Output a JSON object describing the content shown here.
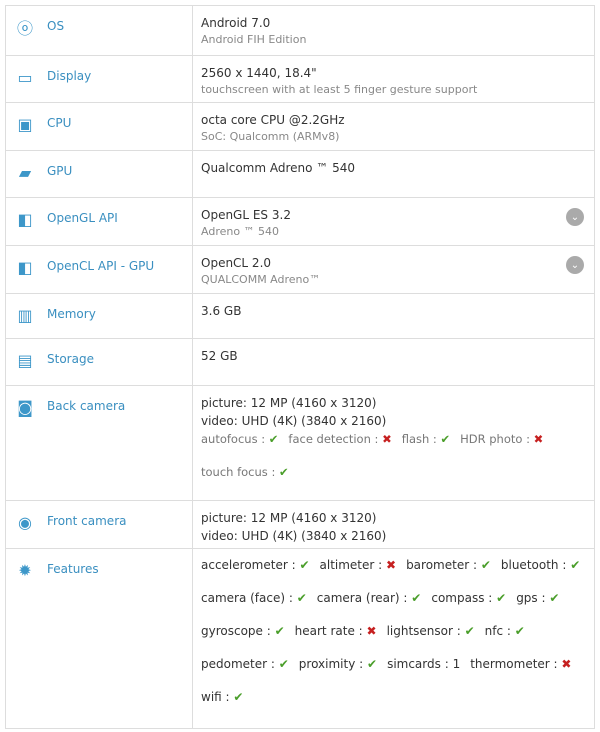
{
  "rows": [
    {
      "label": "OS",
      "icon": "os-icon",
      "main": "Android 7.0",
      "sub": "Android FIH Edition",
      "h": 50
    },
    {
      "label": "Display",
      "icon": "monitor-icon",
      "main": "2560 x 1440, 18.4\"",
      "sub": "touchscreen with at least 5 finger gesture support",
      "h": 47
    },
    {
      "label": "CPU",
      "icon": "cpu-icon",
      "main": "octa core CPU @2.2GHz",
      "sub": "SoC: Qualcomm (ARMv8)",
      "h": 48
    },
    {
      "label": "GPU",
      "icon": "gpu-icon",
      "main": "Qualcomm Adreno ™ 540",
      "h": 47
    },
    {
      "label": "OpenGL API",
      "icon": "opengl-icon",
      "main": "OpenGL ES 3.2",
      "sub": "Adreno ™ 540",
      "expand": true,
      "h": 48
    },
    {
      "label": "OpenCL API - GPU",
      "icon": "opencl-icon",
      "main": "OpenCL 2.0",
      "sub": "QUALCOMM Adreno™",
      "expand": true,
      "h": 48
    },
    {
      "label": "Memory",
      "icon": "memory-icon",
      "main": "3.6 GB",
      "h": 45
    },
    {
      "label": "Storage",
      "icon": "storage-icon",
      "main": "52 GB",
      "h": 47
    },
    {
      "label": "Back camera",
      "icon": "camera-icon",
      "lines": [
        "picture: 12 MP (4160 x 3120)",
        "video: UHD (4K) (3840 x 2160)"
      ],
      "camfeatures": [
        {
          "name": "autofocus",
          "ok": true
        },
        {
          "name": "face detection",
          "ok": false
        },
        {
          "name": "flash",
          "ok": true
        },
        {
          "name": "HDR photo",
          "ok": false
        },
        {
          "name": "touch focus",
          "ok": true
        }
      ],
      "h": 115
    },
    {
      "label": "Front camera",
      "icon": "front-camera-icon",
      "lines": [
        "picture: 12 MP (4160 x 3120)",
        "video: UHD (4K) (3840 x 2160)"
      ],
      "h": 48
    },
    {
      "label": "Features",
      "icon": "gear-icon",
      "features": [
        {
          "name": "accelerometer",
          "ok": true
        },
        {
          "name": "altimeter",
          "ok": false
        },
        {
          "name": "barometer",
          "ok": true
        },
        {
          "name": "bluetooth",
          "ok": true
        },
        {
          "name": "camera (face)",
          "ok": true
        },
        {
          "name": "camera (rear)",
          "ok": true
        },
        {
          "name": "compass",
          "ok": true
        },
        {
          "name": "gps",
          "ok": true
        },
        {
          "name": "gyroscope",
          "ok": true
        },
        {
          "name": "heart rate",
          "ok": false
        },
        {
          "name": "lightsensor",
          "ok": true
        },
        {
          "name": "nfc",
          "ok": true
        },
        {
          "name": "pedometer",
          "ok": true
        },
        {
          "name": "proximity",
          "ok": true
        },
        {
          "name": "simcards",
          "value": "1"
        },
        {
          "name": "thermometer",
          "ok": false
        },
        {
          "name": "wifi",
          "ok": true
        }
      ],
      "h": 180
    }
  ],
  "glyphs": {
    "os-icon": "ⓞ",
    "monitor-icon": "▭",
    "cpu-icon": "▣",
    "gpu-icon": "▰",
    "opengl-icon": "◧",
    "opencl-icon": "◧",
    "memory-icon": "▥",
    "storage-icon": "▤",
    "camera-icon": "◙",
    "front-camera-icon": "◉",
    "gear-icon": "✹",
    "check": "✔",
    "cross": "✖",
    "expand": "⌄"
  },
  "colors": {
    "label": "#3a8fc0",
    "ok": "#4a9e2a",
    "no": "#c62020"
  }
}
